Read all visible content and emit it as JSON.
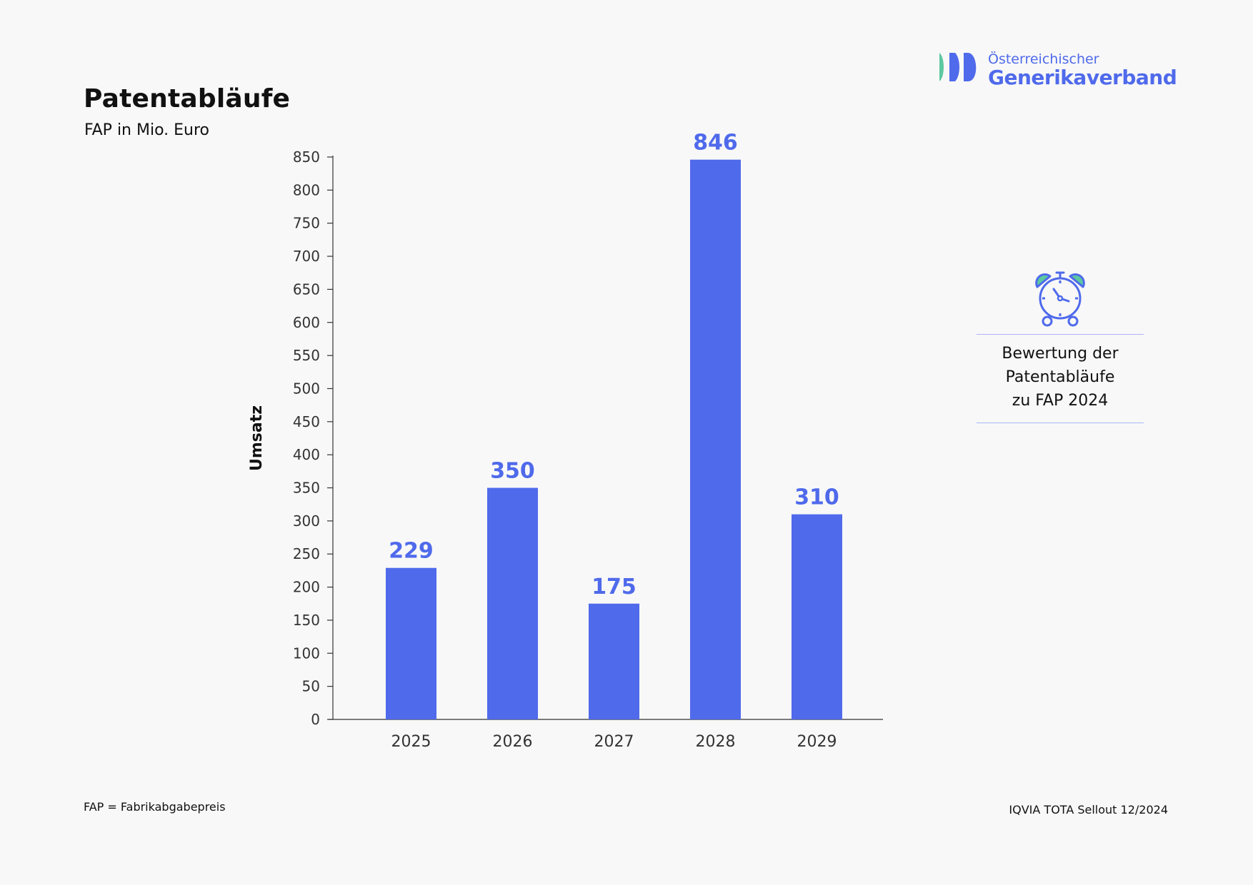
{
  "logo": {
    "line1": "Österreichischer",
    "line2": "Generikaverband",
    "colors": {
      "blue": "#4f6aeb",
      "green": "#5cc8a0"
    }
  },
  "side_panel": {
    "icon": "alarm-clock-icon",
    "caption": "Bewertung der\nPatentabläufe\nzu FAP 2024"
  },
  "footnote_left": "FAP = Fabrikabgabepreis",
  "footnote_right": "IQVIA TOTA Sellout 12/2024",
  "chart_data": {
    "type": "bar",
    "title": "Patentabläufe",
    "subtitle": "FAP in Mio. Euro",
    "ylabel": "Umsatz",
    "xlabel": "",
    "categories": [
      "2025",
      "2026",
      "2027",
      "2028",
      "2029"
    ],
    "values": [
      229,
      350,
      175,
      846,
      310
    ],
    "ylim": [
      0,
      850
    ],
    "yticks": [
      0,
      50,
      100,
      150,
      200,
      250,
      300,
      350,
      400,
      450,
      500,
      550,
      600,
      650,
      700,
      750,
      800,
      850
    ],
    "grid": false,
    "legend": "none",
    "bar_color": "#4f6aeb",
    "label_color": "#4f6aeb"
  }
}
